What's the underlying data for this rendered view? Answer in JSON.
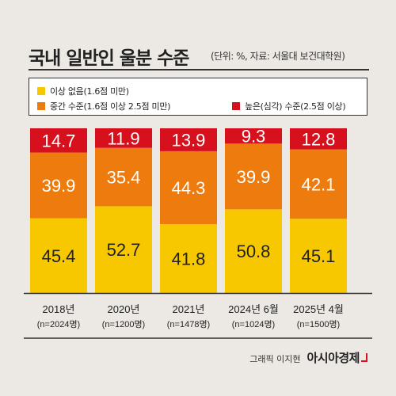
{
  "header": {
    "title": "국내 일반인 울분 수준",
    "subtitle": "(단위: %, 자료: 서울대 보건대학원)"
  },
  "legend": {
    "items": [
      {
        "label": "이상 없음(1.6점 미만)",
        "color": "#f7c800"
      },
      {
        "label": "중간 수준(1.6점 이상 2.5점 미만)",
        "color": "#ee7b0e"
      },
      {
        "label": "높은(심각) 수준(2.5점 이상)",
        "color": "#d6111d"
      }
    ]
  },
  "credit": {
    "text": "그래픽 이지현",
    "brand": "아시아경제"
  },
  "chart_data": {
    "type": "bar",
    "stacked": true,
    "categories": [
      "2018년",
      "2020년",
      "2021년",
      "2024년 6월",
      "2025년 4월"
    ],
    "sample_sizes": [
      "(n=2024명)",
      "(n=1200명)",
      "(n=1478명)",
      "(n=1024명)",
      "(n=1500명)"
    ],
    "series": [
      {
        "name": "이상 없음(1.6점 미만)",
        "values": [
          45.4,
          52.7,
          41.8,
          50.8,
          45.1
        ],
        "color": "#f7c800"
      },
      {
        "name": "중간 수준(1.6점 이상 2.5점 미만)",
        "values": [
          39.9,
          35.4,
          44.3,
          39.9,
          42.1
        ],
        "color": "#ee7b0e"
      },
      {
        "name": "높은(심각) 수준(2.5점 이상)",
        "values": [
          14.7,
          11.9,
          13.9,
          9.3,
          12.8
        ],
        "color": "#d6111d"
      }
    ],
    "ylim": [
      0,
      100
    ],
    "grid": false
  }
}
